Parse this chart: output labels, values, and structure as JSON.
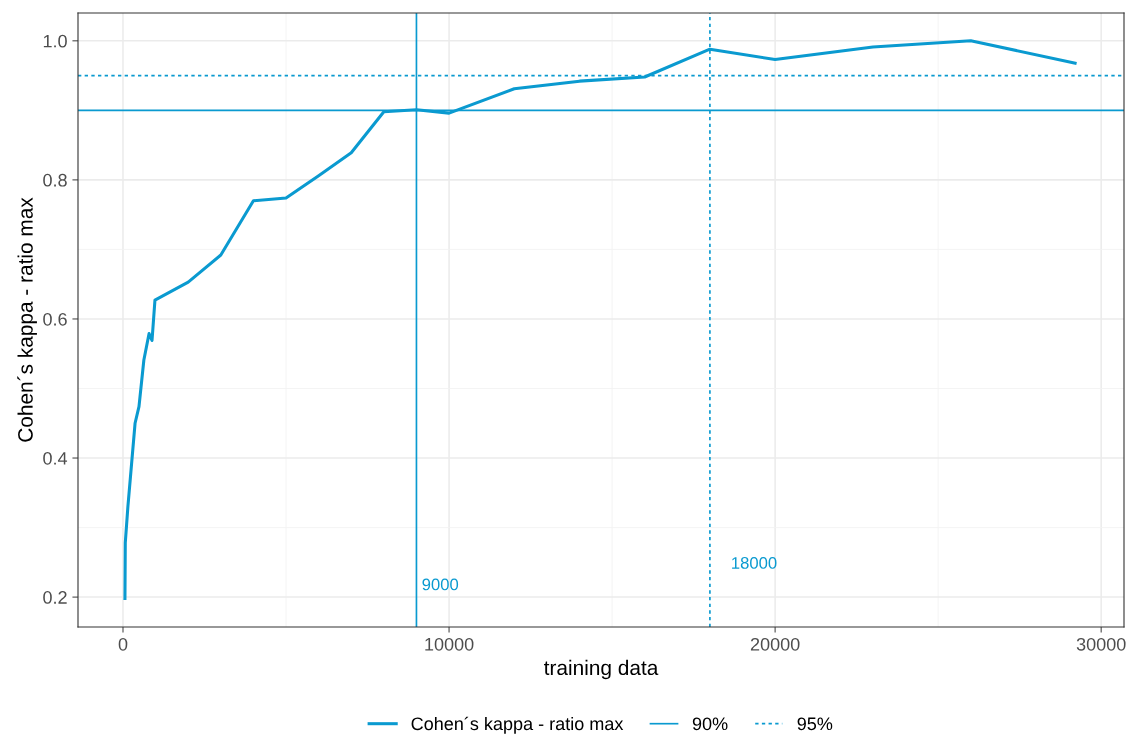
{
  "chart_data": {
    "type": "line",
    "xlabel": "training data",
    "ylabel": "Cohen´s kappa - ratio max",
    "x": [
      60,
      70,
      150,
      370,
      490,
      640,
      800,
      890,
      980,
      2000,
      3000,
      4000,
      5000,
      6000,
      7000,
      8000,
      9000,
      10000,
      12000,
      14000,
      16000,
      18000,
      20000,
      23000,
      26000,
      29200
    ],
    "series": [
      {
        "name": "Cohen´s kappa - ratio max",
        "color": "#0a9ad0",
        "values": [
          0.198,
          0.278,
          0.33,
          0.45,
          0.474,
          0.541,
          0.579,
          0.569,
          0.627,
          0.653,
          0.692,
          0.77,
          0.774,
          0.806,
          0.839,
          0.898,
          0.901,
          0.896,
          0.931,
          0.942,
          0.948,
          0.988,
          0.973,
          0.991,
          1.0,
          0.968
        ]
      }
    ],
    "xlim": [
      -1380,
      30700
    ],
    "ylim": [
      0.157,
      1.04
    ],
    "xticks": [
      0,
      10000,
      20000,
      30000
    ],
    "yticks": [
      0.2,
      0.4,
      0.6,
      0.8,
      {
        "value": 1.0,
        "label": "1.0"
      }
    ],
    "ref_lines": [
      {
        "axis": "y",
        "value": 0.9,
        "label": "90%",
        "color": "#0a9ad0",
        "line_style": "solid"
      },
      {
        "axis": "y",
        "value": 0.95,
        "label": "95%",
        "color": "#0a9ad0",
        "line_style": "dotted"
      },
      {
        "axis": "x",
        "value": 9000,
        "label": "9000",
        "color": "#0a9ad0",
        "line_style": "solid"
      },
      {
        "axis": "x",
        "value": 18000,
        "label": "18000",
        "color": "#0a9ad0",
        "line_style": "dotted"
      }
    ],
    "grid": true,
    "legend": "bottom",
    "marker": "none",
    "line_style": "solid"
  }
}
